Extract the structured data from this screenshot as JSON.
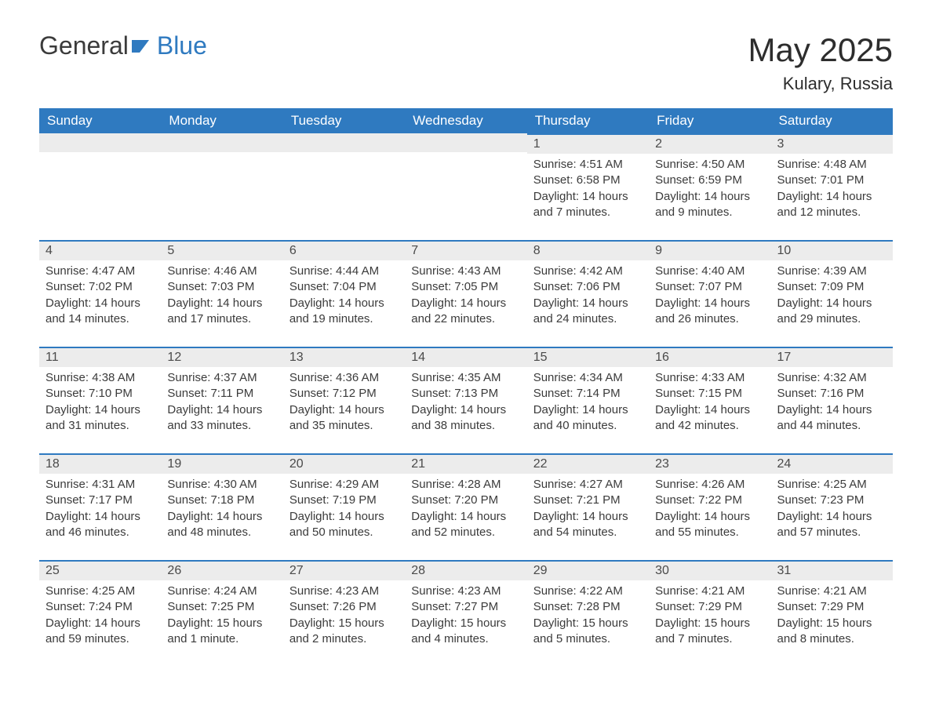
{
  "brand": {
    "part1": "General",
    "part2": "Blue"
  },
  "title": "May 2025",
  "location": "Kulary, Russia",
  "colors": {
    "primary": "#2f7ac0",
    "header_text": "#ffffff",
    "daynum_bg": "#ececec",
    "text": "#333333",
    "background": "#ffffff"
  },
  "calendar": {
    "type": "table",
    "columns": [
      "Sunday",
      "Monday",
      "Tuesday",
      "Wednesday",
      "Thursday",
      "Friday",
      "Saturday"
    ],
    "weeks": [
      [
        null,
        null,
        null,
        null,
        {
          "n": "1",
          "sunrise": "Sunrise: 4:51 AM",
          "sunset": "Sunset: 6:58 PM",
          "daylight": "Daylight: 14 hours and 7 minutes."
        },
        {
          "n": "2",
          "sunrise": "Sunrise: 4:50 AM",
          "sunset": "Sunset: 6:59 PM",
          "daylight": "Daylight: 14 hours and 9 minutes."
        },
        {
          "n": "3",
          "sunrise": "Sunrise: 4:48 AM",
          "sunset": "Sunset: 7:01 PM",
          "daylight": "Daylight: 14 hours and 12 minutes."
        }
      ],
      [
        {
          "n": "4",
          "sunrise": "Sunrise: 4:47 AM",
          "sunset": "Sunset: 7:02 PM",
          "daylight": "Daylight: 14 hours and 14 minutes."
        },
        {
          "n": "5",
          "sunrise": "Sunrise: 4:46 AM",
          "sunset": "Sunset: 7:03 PM",
          "daylight": "Daylight: 14 hours and 17 minutes."
        },
        {
          "n": "6",
          "sunrise": "Sunrise: 4:44 AM",
          "sunset": "Sunset: 7:04 PM",
          "daylight": "Daylight: 14 hours and 19 minutes."
        },
        {
          "n": "7",
          "sunrise": "Sunrise: 4:43 AM",
          "sunset": "Sunset: 7:05 PM",
          "daylight": "Daylight: 14 hours and 22 minutes."
        },
        {
          "n": "8",
          "sunrise": "Sunrise: 4:42 AM",
          "sunset": "Sunset: 7:06 PM",
          "daylight": "Daylight: 14 hours and 24 minutes."
        },
        {
          "n": "9",
          "sunrise": "Sunrise: 4:40 AM",
          "sunset": "Sunset: 7:07 PM",
          "daylight": "Daylight: 14 hours and 26 minutes."
        },
        {
          "n": "10",
          "sunrise": "Sunrise: 4:39 AM",
          "sunset": "Sunset: 7:09 PM",
          "daylight": "Daylight: 14 hours and 29 minutes."
        }
      ],
      [
        {
          "n": "11",
          "sunrise": "Sunrise: 4:38 AM",
          "sunset": "Sunset: 7:10 PM",
          "daylight": "Daylight: 14 hours and 31 minutes."
        },
        {
          "n": "12",
          "sunrise": "Sunrise: 4:37 AM",
          "sunset": "Sunset: 7:11 PM",
          "daylight": "Daylight: 14 hours and 33 minutes."
        },
        {
          "n": "13",
          "sunrise": "Sunrise: 4:36 AM",
          "sunset": "Sunset: 7:12 PM",
          "daylight": "Daylight: 14 hours and 35 minutes."
        },
        {
          "n": "14",
          "sunrise": "Sunrise: 4:35 AM",
          "sunset": "Sunset: 7:13 PM",
          "daylight": "Daylight: 14 hours and 38 minutes."
        },
        {
          "n": "15",
          "sunrise": "Sunrise: 4:34 AM",
          "sunset": "Sunset: 7:14 PM",
          "daylight": "Daylight: 14 hours and 40 minutes."
        },
        {
          "n": "16",
          "sunrise": "Sunrise: 4:33 AM",
          "sunset": "Sunset: 7:15 PM",
          "daylight": "Daylight: 14 hours and 42 minutes."
        },
        {
          "n": "17",
          "sunrise": "Sunrise: 4:32 AM",
          "sunset": "Sunset: 7:16 PM",
          "daylight": "Daylight: 14 hours and 44 minutes."
        }
      ],
      [
        {
          "n": "18",
          "sunrise": "Sunrise: 4:31 AM",
          "sunset": "Sunset: 7:17 PM",
          "daylight": "Daylight: 14 hours and 46 minutes."
        },
        {
          "n": "19",
          "sunrise": "Sunrise: 4:30 AM",
          "sunset": "Sunset: 7:18 PM",
          "daylight": "Daylight: 14 hours and 48 minutes."
        },
        {
          "n": "20",
          "sunrise": "Sunrise: 4:29 AM",
          "sunset": "Sunset: 7:19 PM",
          "daylight": "Daylight: 14 hours and 50 minutes."
        },
        {
          "n": "21",
          "sunrise": "Sunrise: 4:28 AM",
          "sunset": "Sunset: 7:20 PM",
          "daylight": "Daylight: 14 hours and 52 minutes."
        },
        {
          "n": "22",
          "sunrise": "Sunrise: 4:27 AM",
          "sunset": "Sunset: 7:21 PM",
          "daylight": "Daylight: 14 hours and 54 minutes."
        },
        {
          "n": "23",
          "sunrise": "Sunrise: 4:26 AM",
          "sunset": "Sunset: 7:22 PM",
          "daylight": "Daylight: 14 hours and 55 minutes."
        },
        {
          "n": "24",
          "sunrise": "Sunrise: 4:25 AM",
          "sunset": "Sunset: 7:23 PM",
          "daylight": "Daylight: 14 hours and 57 minutes."
        }
      ],
      [
        {
          "n": "25",
          "sunrise": "Sunrise: 4:25 AM",
          "sunset": "Sunset: 7:24 PM",
          "daylight": "Daylight: 14 hours and 59 minutes."
        },
        {
          "n": "26",
          "sunrise": "Sunrise: 4:24 AM",
          "sunset": "Sunset: 7:25 PM",
          "daylight": "Daylight: 15 hours and 1 minute."
        },
        {
          "n": "27",
          "sunrise": "Sunrise: 4:23 AM",
          "sunset": "Sunset: 7:26 PM",
          "daylight": "Daylight: 15 hours and 2 minutes."
        },
        {
          "n": "28",
          "sunrise": "Sunrise: 4:23 AM",
          "sunset": "Sunset: 7:27 PM",
          "daylight": "Daylight: 15 hours and 4 minutes."
        },
        {
          "n": "29",
          "sunrise": "Sunrise: 4:22 AM",
          "sunset": "Sunset: 7:28 PM",
          "daylight": "Daylight: 15 hours and 5 minutes."
        },
        {
          "n": "30",
          "sunrise": "Sunrise: 4:21 AM",
          "sunset": "Sunset: 7:29 PM",
          "daylight": "Daylight: 15 hours and 7 minutes."
        },
        {
          "n": "31",
          "sunrise": "Sunrise: 4:21 AM",
          "sunset": "Sunset: 7:29 PM",
          "daylight": "Daylight: 15 hours and 8 minutes."
        }
      ]
    ]
  }
}
